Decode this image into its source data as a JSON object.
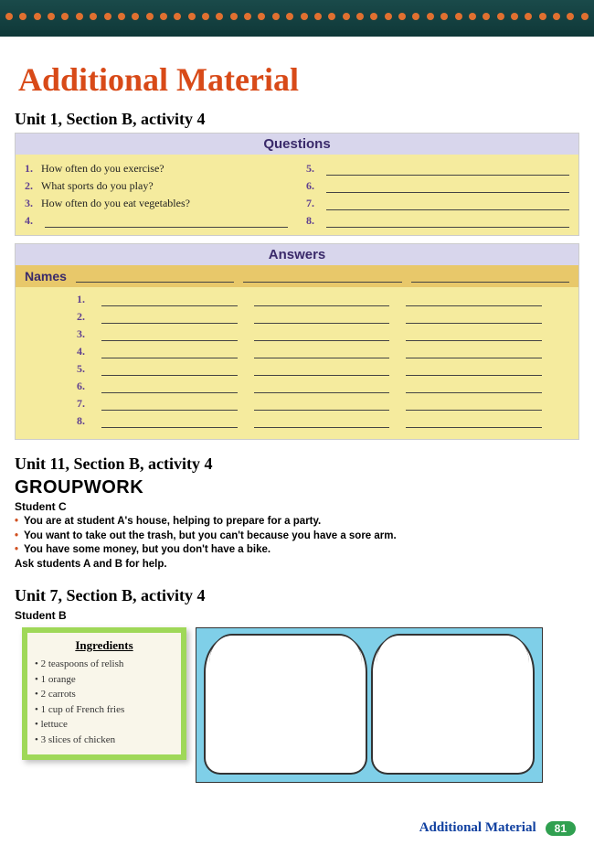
{
  "colors": {
    "header_bg": "#14403f",
    "dot_color": "#e07030",
    "title_color": "#d84a18",
    "section_bg": "#d8d6ec",
    "section_text": "#3a2a6a",
    "yellow_bg": "#f5eb9e",
    "names_bg": "#e8c86a",
    "num_color": "#604090",
    "ingred_border": "#9fd858",
    "bread_bg": "#7fcfe8",
    "footer_text": "#1040a0",
    "pgnum_bg": "#30a050"
  },
  "title": "Additional Material",
  "unit1": {
    "heading": "Unit 1, Section B, activity 4",
    "questions_label": "Questions",
    "answers_label": "Answers",
    "names_label": "Names",
    "questions": [
      {
        "n": "1.",
        "text": "How often do you exercise?"
      },
      {
        "n": "2.",
        "text": "What sports do you play?"
      },
      {
        "n": "3.",
        "text": "How often do you eat vegetables?"
      },
      {
        "n": "4.",
        "text": ""
      },
      {
        "n": "5.",
        "text": ""
      },
      {
        "n": "6.",
        "text": ""
      },
      {
        "n": "7.",
        "text": ""
      },
      {
        "n": "8.",
        "text": ""
      }
    ],
    "answer_rows": [
      "1.",
      "2.",
      "3.",
      "4.",
      "5.",
      "6.",
      "7.",
      "8."
    ]
  },
  "unit11": {
    "heading": "Unit 11, Section B, activity 4",
    "groupwork": "GROUPWORK",
    "student": "Student C",
    "lines": [
      "You are at student A's house, helping to prepare for a party.",
      "You want to take out the trash, but you can't because you have a sore arm.",
      "You have some money, but you don't have a bike."
    ],
    "ask": "Ask students A and B for help."
  },
  "unit7": {
    "heading": "Unit 7, Section B, activity 4",
    "student": "Student B",
    "ingredients_title": "Ingredients",
    "ingredients": [
      "2 teaspoons of relish",
      "1 orange",
      "2 carrots",
      "1 cup of French fries",
      "lettuce",
      "3 slices of chicken"
    ]
  },
  "footer": {
    "label": "Additional Material",
    "page": "81"
  }
}
